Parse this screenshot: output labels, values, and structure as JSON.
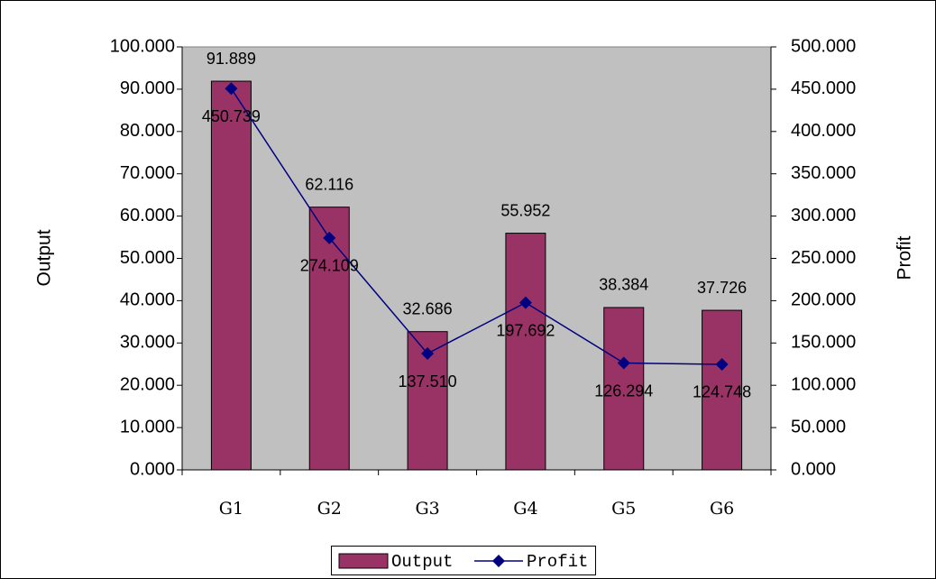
{
  "chart_data": {
    "type": "bar",
    "categories": [
      "G1",
      "G2",
      "G3",
      "G4",
      "G5",
      "G6"
    ],
    "ylabel": "Output",
    "y2label": "Profit",
    "series": [
      {
        "name": "Output",
        "type": "bar",
        "color": "#993366",
        "axis": "y",
        "values": [
          91.889,
          62.116,
          32.686,
          55.952,
          38.384,
          37.726
        ],
        "value_labels": [
          "91.889",
          "62.116",
          "32.686",
          "55.952",
          "38.384",
          "37.726"
        ]
      },
      {
        "name": "Profit",
        "type": "line",
        "color": "#000080",
        "axis": "y2",
        "values": [
          450.739,
          274.109,
          137.51,
          197.692,
          126.294,
          124.748
        ],
        "value_labels": [
          "450.739",
          "274.109",
          "137.510",
          "197.692",
          "126.294",
          "124.748"
        ]
      }
    ],
    "ylim": [
      0,
      100
    ],
    "yticks": [
      {
        "value": 0,
        "label": "0.000"
      },
      {
        "value": 10,
        "label": "10.000"
      },
      {
        "value": 20,
        "label": "20.000"
      },
      {
        "value": 30,
        "label": "30.000"
      },
      {
        "value": 40,
        "label": "40.000"
      },
      {
        "value": 50,
        "label": "50.000"
      },
      {
        "value": 60,
        "label": "60.000"
      },
      {
        "value": 70,
        "label": "70.000"
      },
      {
        "value": 80,
        "label": "80.000"
      },
      {
        "value": 90,
        "label": "90.000"
      },
      {
        "value": 100,
        "label": "100.000"
      }
    ],
    "y2lim": [
      0,
      500
    ],
    "y2ticks": [
      {
        "value": 0,
        "label": "0.000"
      },
      {
        "value": 50,
        "label": "50.000"
      },
      {
        "value": 100,
        "label": "100.000"
      },
      {
        "value": 150,
        "label": "150.000"
      },
      {
        "value": 200,
        "label": "200.000"
      },
      {
        "value": 250,
        "label": "250.000"
      },
      {
        "value": 300,
        "label": "300.000"
      },
      {
        "value": 350,
        "label": "350.000"
      },
      {
        "value": 400,
        "label": "400.000"
      },
      {
        "value": 450,
        "label": "450.000"
      },
      {
        "value": 500,
        "label": "500.000"
      }
    ],
    "plot_background": "#c0c0c0",
    "legend": "bottom"
  }
}
